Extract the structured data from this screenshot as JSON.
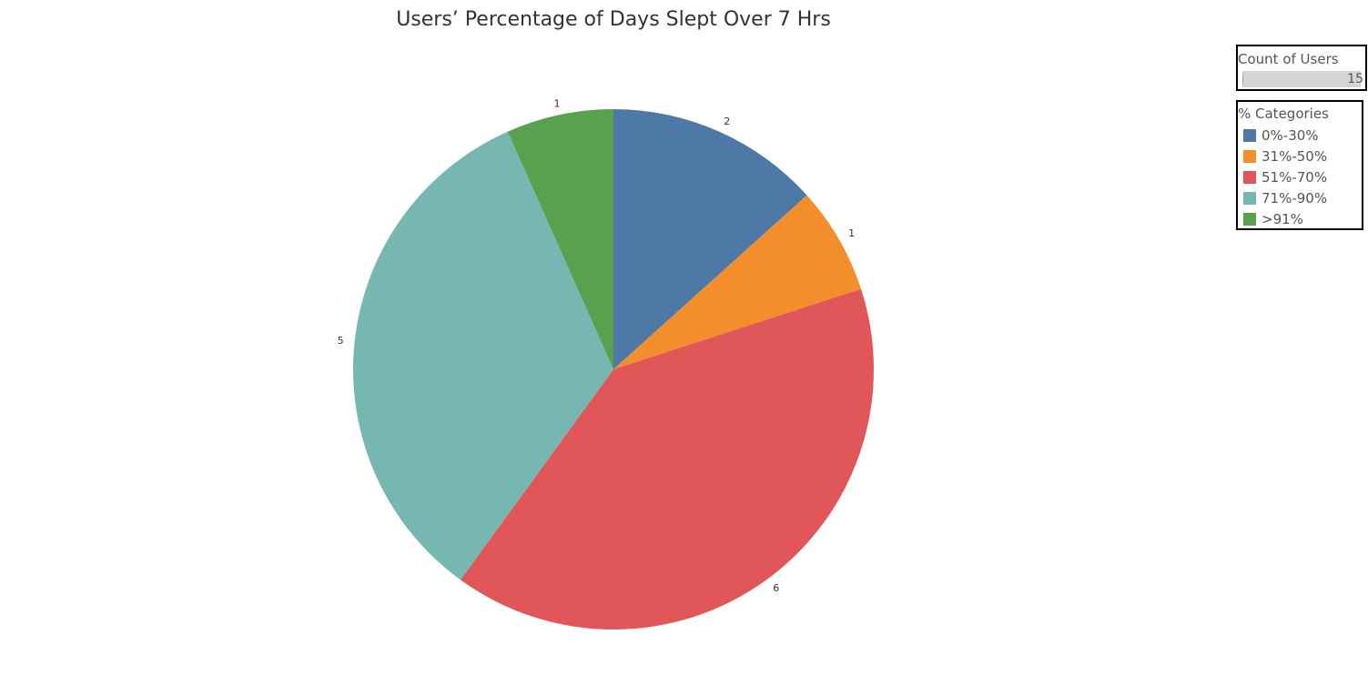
{
  "chart_data": {
    "type": "pie",
    "title": "Users’ Percentage of Days Slept Over 7 Hrs",
    "categories": [
      "0%-30%",
      "31%-50%",
      "51%-70%",
      "71%-90%",
      ">91%"
    ],
    "values": [
      2,
      1,
      6,
      5,
      1
    ],
    "colors": [
      "#4e79a7",
      "#f28e2b",
      "#e15759",
      "#76b7b2",
      "#59a14f"
    ],
    "legend_title": "% Categories",
    "legend_placement": "top-right",
    "size_legend": {
      "title": "Count of Users",
      "value": "15"
    }
  }
}
